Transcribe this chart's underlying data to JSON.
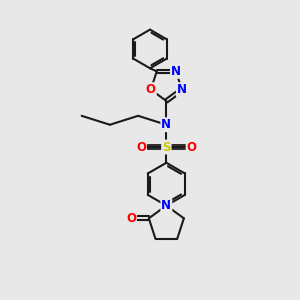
{
  "bg_color": "#e8e8e8",
  "bond_color": "#1a1a1a",
  "bond_width": 1.5,
  "atom_colors": {
    "N": "#0000ff",
    "O": "#ff0000",
    "S": "#cccc00",
    "C": "#1a1a1a"
  },
  "font_size": 8.5,
  "fig_w": 3.0,
  "fig_h": 3.0,
  "dpi": 100,
  "xlim": [
    0,
    10
  ],
  "ylim": [
    0,
    10
  ]
}
